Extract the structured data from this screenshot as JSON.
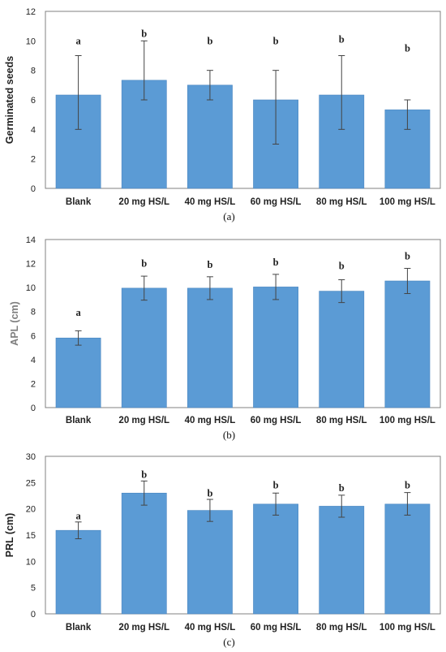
{
  "colors": {
    "bar": "#5b9bd5",
    "bar_edge": "#4a86c0",
    "error_bar": "#444444",
    "frame": "#808080"
  },
  "chart_data": [
    {
      "type": "bar",
      "caption": "(a)",
      "ylabel": "Germinated seeds",
      "ylabel_color": "#222222",
      "categories": [
        "Blank",
        "20 mg HS/L",
        "40 mg HS/L",
        "60 mg HS/L",
        "80 mg HS/L",
        "100 mg HS/L"
      ],
      "values": [
        6.33,
        7.33,
        7.0,
        6.0,
        6.33,
        5.33
      ],
      "error_high": [
        9.0,
        10.0,
        8.0,
        8.0,
        9.0,
        6.0
      ],
      "error_low": [
        4.0,
        6.0,
        6.0,
        3.0,
        4.0,
        4.0
      ],
      "significance": [
        "a",
        "b",
        "b",
        "b",
        "b",
        "b"
      ],
      "sig_y": [
        10.0,
        10.5,
        10.0,
        10.0,
        10.1,
        9.5
      ],
      "ylim": [
        0,
        12
      ],
      "yticks": [
        0,
        2,
        4,
        6,
        8,
        10,
        12
      ],
      "ytick_labels": [
        "0",
        "2",
        "4",
        "6",
        "8",
        "10",
        "12"
      ],
      "grid": false,
      "legend": "none"
    },
    {
      "type": "bar",
      "caption": "(b)",
      "ylabel": "APL (cm)",
      "ylabel_color": "#7f7f7f",
      "categories": [
        "Blank",
        "20 mg HS/L",
        "40 mg HS/L",
        "60 mg HS/L",
        "80 mg HS/L",
        "100 mg HS/L"
      ],
      "values": [
        5.8,
        9.95,
        9.95,
        10.05,
        9.7,
        10.55
      ],
      "error_high": [
        6.4,
        10.95,
        10.9,
        11.1,
        10.65,
        11.6
      ],
      "error_low": [
        5.2,
        8.95,
        9.0,
        9.0,
        8.75,
        9.5
      ],
      "significance": [
        "a",
        "b",
        "b",
        "b",
        "b",
        "b"
      ],
      "sig_y": [
        7.9,
        12.0,
        11.9,
        12.1,
        11.8,
        12.6
      ],
      "ylim": [
        0,
        14
      ],
      "yticks": [
        0,
        2,
        4,
        6,
        8,
        10,
        12,
        14
      ],
      "ytick_labels": [
        "0",
        "2",
        "4",
        "6",
        "8",
        "10",
        "12",
        "14"
      ],
      "grid": false,
      "legend": "none"
    },
    {
      "type": "bar",
      "caption": "(c)",
      "ylabel": "PRL (cm)",
      "ylabel_color": "#222222",
      "categories": [
        "Blank",
        "20 mg HS/L",
        "40 mg HS/L",
        "60 mg HS/L",
        "80 mg HS/L",
        "100 mg HS/L"
      ],
      "values": [
        15.9,
        23.0,
        19.7,
        20.9,
        20.5,
        20.9
      ],
      "error_high": [
        17.5,
        25.3,
        21.8,
        23.0,
        22.6,
        23.1
      ],
      "error_low": [
        14.3,
        20.7,
        17.6,
        18.8,
        18.4,
        18.8
      ],
      "significance": [
        "a",
        "b",
        "b",
        "b",
        "b",
        "b"
      ],
      "sig_y": [
        18.6,
        26.5,
        23.0,
        24.5,
        24.0,
        24.5
      ],
      "ylim": [
        0,
        30
      ],
      "yticks": [
        0,
        5,
        10,
        15,
        20,
        25,
        30
      ],
      "ytick_labels": [
        "0",
        "5",
        "10",
        "15",
        "20",
        "25",
        "30"
      ],
      "grid": false,
      "legend": "none"
    }
  ]
}
